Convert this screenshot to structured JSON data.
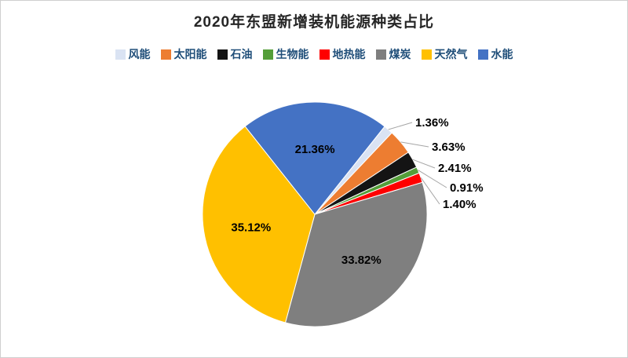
{
  "page": {
    "title": "2020年东盟新增装机能源种类占比"
  },
  "legend": {
    "position": "top"
  },
  "colors": {
    "title_text": "#262626",
    "legend_text": "#1f4e79",
    "card_border": "#cfcfcf",
    "leader_line": "#a6a6a6",
    "background": "#ffffff"
  },
  "chart_data": {
    "type": "pie",
    "title": "2020年东盟新增装机能源种类占比",
    "categories": [
      "风能",
      "太阳能",
      "石油",
      "生物能",
      "地热能",
      "煤炭",
      "天然气",
      "水能"
    ],
    "values": [
      1.36,
      3.63,
      2.41,
      0.91,
      1.4,
      33.82,
      35.12,
      21.36
    ],
    "labels": [
      "1.36%",
      "3.63%",
      "2.41%",
      "0.91%",
      "1.40%",
      "33.82%",
      "35.12%",
      "21.36%"
    ],
    "colors": [
      "#dae3f3",
      "#ed7d31",
      "#141414",
      "#549e39",
      "#ff0000",
      "#7f7f7f",
      "#ffc000",
      "#4472c4"
    ],
    "legend_position": "top",
    "start_angle": 38.5,
    "grid": false,
    "label_color": "#000000"
  }
}
